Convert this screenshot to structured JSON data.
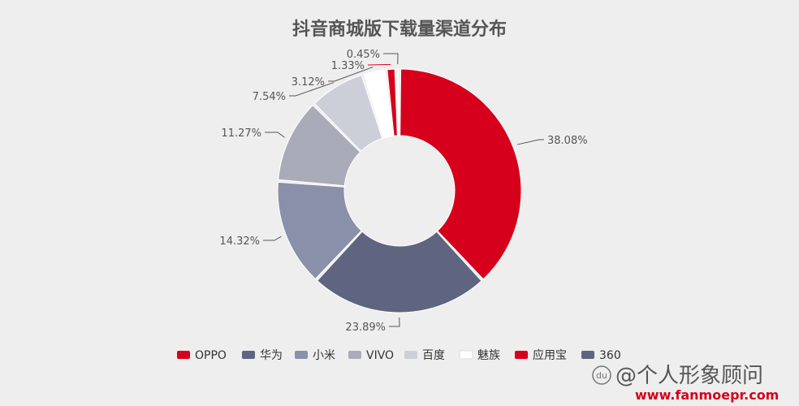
{
  "chart_data": {
    "type": "pie",
    "variant": "donut",
    "title": "抖音商城版下载量渠道分布",
    "categories": [
      "OPPO",
      "华为",
      "小米",
      "VIVO",
      "百度",
      "魅族",
      "应用宝",
      "360"
    ],
    "values": [
      38.08,
      23.89,
      14.32,
      11.27,
      7.54,
      3.12,
      1.33,
      0.45
    ],
    "labels": [
      "38.08%",
      "23.89%",
      "14.32%",
      "11.27%",
      "7.54%",
      "3.12%",
      "1.33%",
      "0.45%"
    ],
    "colors": [
      "#d6001c",
      "#5f6580",
      "#8a90aa",
      "#a9abb8",
      "#cdcfd8",
      "#ffffff",
      "#d6001c",
      "#5f6580"
    ],
    "legend_position": "bottom"
  },
  "watermark": {
    "badge": "du",
    "line1": "@个人形象顾问",
    "line2": "www.fanmoepr.com"
  }
}
